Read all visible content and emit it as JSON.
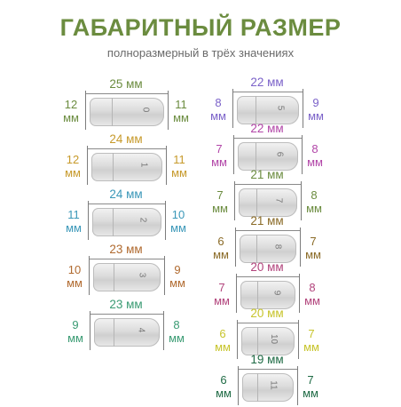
{
  "header": {
    "title": "ГАБАРИТНЫЙ РАЗМЕР",
    "subtitle": "полноразмерный в трёх значениях"
  },
  "unit": "мм",
  "left_column": [
    {
      "number": "0",
      "length": "25 мм",
      "left": "12",
      "right": "11",
      "color": "#6b8c3f"
    },
    {
      "number": "1",
      "length": "24 мм",
      "left": "12",
      "right": "11",
      "color": "#c79a2b"
    },
    {
      "number": "2",
      "length": "24 мм",
      "left": "11",
      "right": "10",
      "color": "#3a97b8"
    },
    {
      "number": "3",
      "length": "23 мм",
      "left": "10",
      "right": "9",
      "color": "#b06a2f"
    },
    {
      "number": "4",
      "length": "23 мм",
      "left": "9",
      "right": "8",
      "color": "#3a9b73"
    }
  ],
  "right_column": [
    {
      "number": "5",
      "length": "22 мм",
      "left": "8",
      "right": "9",
      "color": "#7b62c9"
    },
    {
      "number": "6",
      "length": "22 мм",
      "left": "7",
      "right": "8",
      "color": "#b246a8"
    },
    {
      "number": "7",
      "length": "21 мм",
      "left": "7",
      "right": "8",
      "color": "#6b8c3f"
    },
    {
      "number": "8",
      "length": "21 мм",
      "left": "6",
      "right": "7",
      "color": "#8a6a26"
    },
    {
      "number": "9",
      "length": "20 мм",
      "left": "7",
      "right": "8",
      "color": "#b2447c"
    },
    {
      "number": "10",
      "length": "20 мм",
      "left": "6",
      "right": "7",
      "color": "#c7c42b"
    },
    {
      "number": "11",
      "length": "19 мм",
      "left": "6",
      "right": "7",
      "color": "#1f6b45"
    }
  ]
}
